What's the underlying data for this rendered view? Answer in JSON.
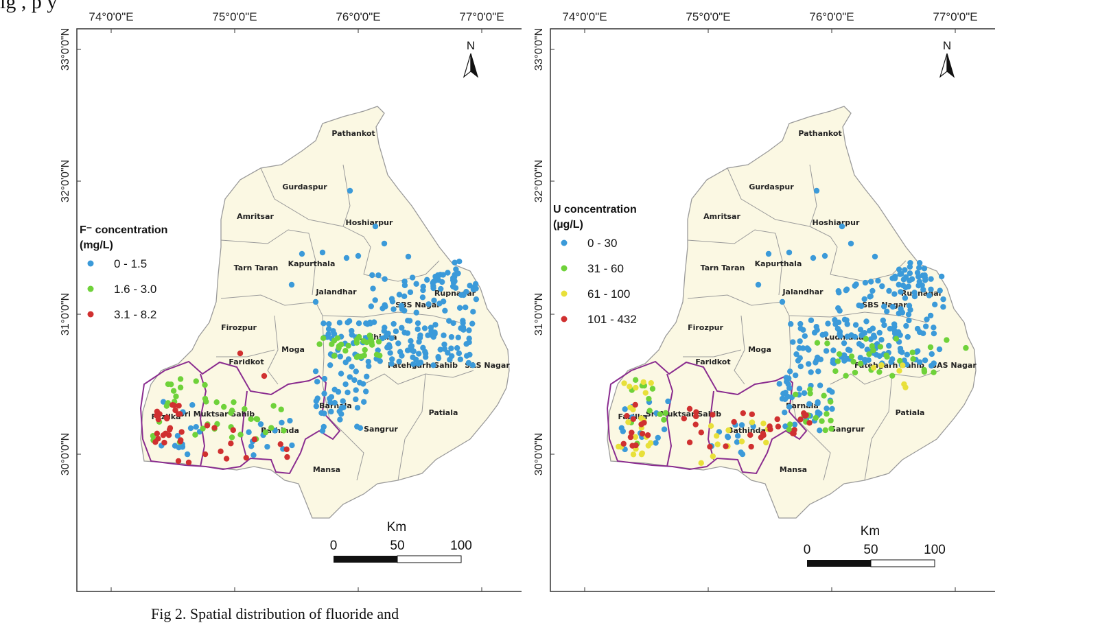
{
  "top_text": "ig                                                    ,  p           y",
  "bottom_text": "Fig 2.  Spatial distribution of fluoride and",
  "maps": [
    {
      "legend_title_1": "F⁻ concentration",
      "legend_title_2": "(mg/L)",
      "legend": [
        {
          "label": "0 - 1.5",
          "color": "#3b9ad9"
        },
        {
          "label": "1.6 - 3.0",
          "color": "#6fd23a"
        },
        {
          "label": "3.1 - 8.2",
          "color": "#d03030"
        }
      ]
    },
    {
      "legend_title_1": "U concentration",
      "legend_title_2": "(µg/L)",
      "legend": [
        {
          "label": "0 - 30",
          "color": "#3b9ad9"
        },
        {
          "label": "31 - 60",
          "color": "#6fd23a"
        },
        {
          "label": "61 - 100",
          "color": "#e8e03a"
        },
        {
          "label": "101 - 432",
          "color": "#d03030"
        }
      ]
    }
  ],
  "x_ticks": [
    "74°0'0\"E",
    "75°0'0\"E",
    "76°0'0\"E",
    "77°0'0\"E"
  ],
  "y_ticks": [
    "33°0'0\"N",
    "32°0'0\"N",
    "31°0'0\"N",
    "30°0'0\"N"
  ],
  "north_label": "N",
  "scale": {
    "unit": "Km",
    "labels": [
      "0",
      "50",
      "100"
    ]
  },
  "districts": [
    "Pathankot",
    "Gurdaspur",
    "Amritsar",
    "Hoshiarpur",
    "Tarn Taran",
    "Kapurthala",
    "Jalandhar",
    "SBS Nagar",
    "Rupnagar",
    "Firozpur",
    "Ludhiana",
    "Moga",
    "Faridkot",
    "Fatehgarh Sahib",
    "SAS Nagar",
    "Fazilka",
    "Sri Muktsar Sahib",
    "Bathinda",
    "Barnala",
    "Sangrur",
    "Patiala",
    "Mansa"
  ],
  "colors": {
    "land": "#fbf8e3",
    "border": "#9a9a9a",
    "highlight_border": "#8a2c8f"
  }
}
